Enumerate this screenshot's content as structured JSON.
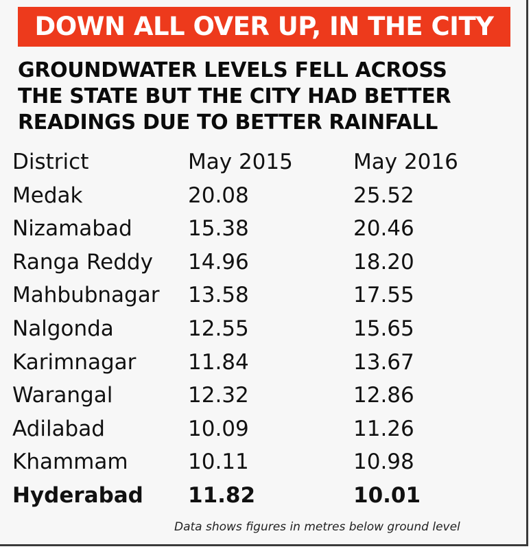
{
  "banner": {
    "text": "DOWN ALL OVER UP, IN THE CITY",
    "color": "#ed3a1c"
  },
  "subtitle": {
    "lines": [
      "GROUNDWATER LEVELS FELL ACROSS",
      "THE STATE BUT THE CITY HAD BETTER",
      "READINGS DUE TO BETTER RAINFALL"
    ]
  },
  "chart_data": {
    "type": "table",
    "columns": [
      "District",
      "May 2015",
      "May 2016"
    ],
    "rows": [
      {
        "district": "Medak",
        "may_2015": "20.08",
        "may_2016": "25.52"
      },
      {
        "district": "Nizamabad",
        "may_2015": "15.38",
        "may_2016": "20.46"
      },
      {
        "district": "Ranga Reddy",
        "may_2015": "14.96",
        "may_2016": "18.20"
      },
      {
        "district": "Mahbubnagar",
        "may_2015": "13.58",
        "may_2016": "17.55"
      },
      {
        "district": "Nalgonda",
        "may_2015": "12.55",
        "may_2016": "15.65"
      },
      {
        "district": "Karimnagar",
        "may_2015": "11.84",
        "may_2016": "13.67"
      },
      {
        "district": "Warangal",
        "may_2015": "12.32",
        "may_2016": "12.86"
      },
      {
        "district": "Adilabad",
        "may_2015": "10.09",
        "may_2016": "11.26"
      },
      {
        "district": "Khammam",
        "may_2015": "10.11",
        "may_2016": "10.98"
      },
      {
        "district": "Hyderabad",
        "may_2015": "11.82",
        "may_2016": "10.01",
        "highlight": true
      }
    ],
    "footnote": "Data shows figures in metres below ground level"
  }
}
